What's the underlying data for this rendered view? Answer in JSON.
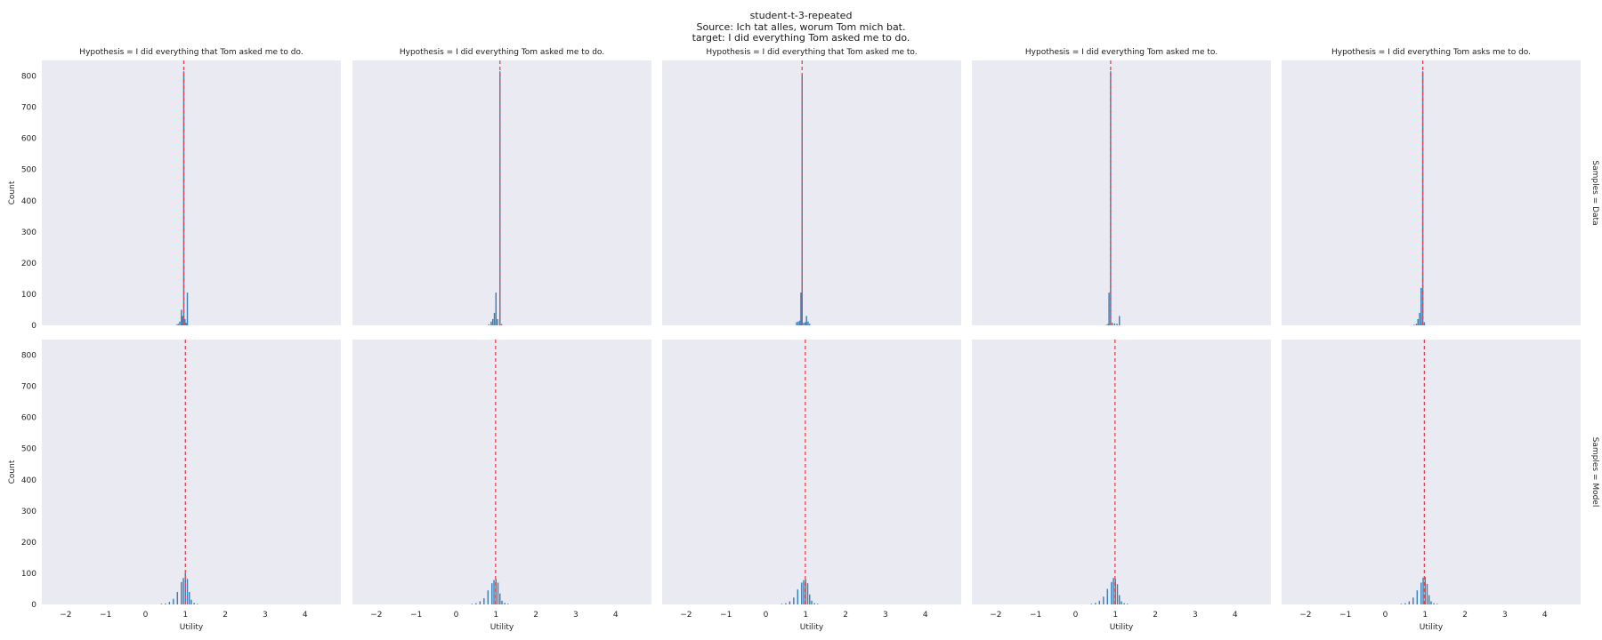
{
  "figure": {
    "title_lines": [
      "student-t-3-repeated",
      "Source: Ich tat alles, worum Tom mich bat.",
      "target: I did everything Tom asked me to do."
    ]
  },
  "colors": {
    "panel_bg": "#eaeaf2",
    "bar": "#3b7fb8",
    "reference_line": "#e8464f"
  },
  "chart_data": {
    "type": "histogram",
    "xlabel": "Utility",
    "ylabel": "Count",
    "xlim": [
      -2.6,
      4.9
    ],
    "ylim": [
      0,
      850
    ],
    "x_ticks": [
      -2,
      -1,
      0,
      1,
      2,
      3,
      4
    ],
    "x_tick_labels": [
      "−2",
      "−1",
      "0",
      "1",
      "2",
      "3",
      "4"
    ],
    "y_ticks": [
      0,
      100,
      200,
      300,
      400,
      500,
      600,
      700,
      800
    ],
    "y_tick_labels": [
      "0",
      "100",
      "200",
      "300",
      "400",
      "500",
      "600",
      "700",
      "800"
    ],
    "grid": false,
    "columns": [
      "Hypothesis = I did everything that Tom asked me to do.",
      "Hypothesis = I did everything Tom asked me to do.",
      "Hypothesis = I did everything that Tom asked me to.",
      "Hypothesis = I did everything Tom asked me to.",
      "Hypothesis = I did everything Tom asks me to do."
    ],
    "rows": [
      "Samples = Data",
      "Samples = Model"
    ],
    "reference_lines": [
      [
        0.96,
        1.1,
        0.91,
        0.88,
        0.94
      ],
      [
        1.0,
        0.99,
        0.99,
        0.99,
        0.98
      ]
    ],
    "panels": [
      [
        {
          "bins": [
            [
              0.78,
              2
            ],
            [
              0.82,
              5
            ],
            [
              0.86,
              12
            ],
            [
              0.9,
              50
            ],
            [
              0.93,
              30
            ],
            [
              0.96,
              815
            ],
            [
              0.99,
              20
            ],
            [
              1.02,
              8
            ],
            [
              1.05,
              105
            ]
          ]
        },
        {
          "bins": [
            [
              0.82,
              3
            ],
            [
              0.88,
              12
            ],
            [
              0.92,
              20
            ],
            [
              0.96,
              40
            ],
            [
              1.0,
              105
            ],
            [
              1.04,
              20
            ],
            [
              1.1,
              815
            ],
            [
              1.14,
              4
            ]
          ]
        },
        {
          "bins": [
            [
              0.77,
              10
            ],
            [
              0.81,
              12
            ],
            [
              0.85,
              15
            ],
            [
              0.88,
              105
            ],
            [
              0.91,
              805
            ],
            [
              0.95,
              8
            ],
            [
              0.99,
              10
            ],
            [
              1.02,
              30
            ],
            [
              1.06,
              12
            ],
            [
              1.1,
              5
            ]
          ]
        },
        {
          "bins": [
            [
              0.78,
              2
            ],
            [
              0.82,
              5
            ],
            [
              0.84,
              105
            ],
            [
              0.88,
              815
            ],
            [
              0.92,
              8
            ],
            [
              0.98,
              6
            ],
            [
              1.04,
              5
            ],
            [
              1.1,
              30
            ]
          ]
        },
        {
          "bins": [
            [
              0.72,
              2
            ],
            [
              0.78,
              5
            ],
            [
              0.82,
              20
            ],
            [
              0.86,
              40
            ],
            [
              0.9,
              120
            ],
            [
              0.94,
              815
            ],
            [
              0.98,
              10
            ]
          ]
        }
      ],
      [
        {
          "bins": [
            [
              0.4,
              2
            ],
            [
              0.5,
              3
            ],
            [
              0.6,
              8
            ],
            [
              0.7,
              18
            ],
            [
              0.8,
              40
            ],
            [
              0.9,
              72
            ],
            [
              0.95,
              85
            ],
            [
              1.0,
              100
            ],
            [
              1.05,
              82
            ],
            [
              1.1,
              40
            ],
            [
              1.15,
              15
            ],
            [
              1.22,
              5
            ],
            [
              1.3,
              2
            ]
          ]
        },
        {
          "bins": [
            [
              0.4,
              2
            ],
            [
              0.5,
              4
            ],
            [
              0.6,
              10
            ],
            [
              0.7,
              20
            ],
            [
              0.8,
              45
            ],
            [
              0.9,
              68
            ],
            [
              0.95,
              78
            ],
            [
              1.0,
              82
            ],
            [
              1.05,
              70
            ],
            [
              1.1,
              35
            ],
            [
              1.15,
              12
            ],
            [
              1.22,
              5
            ],
            [
              1.3,
              2
            ]
          ]
        },
        {
          "bins": [
            [
              0.4,
              2
            ],
            [
              0.5,
              4
            ],
            [
              0.6,
              10
            ],
            [
              0.7,
              22
            ],
            [
              0.8,
              48
            ],
            [
              0.9,
              70
            ],
            [
              0.95,
              78
            ],
            [
              1.0,
              80
            ],
            [
              1.05,
              68
            ],
            [
              1.1,
              32
            ],
            [
              1.15,
              12
            ],
            [
              1.22,
              4
            ],
            [
              1.3,
              2
            ]
          ]
        },
        {
          "bins": [
            [
              0.4,
              2
            ],
            [
              0.5,
              5
            ],
            [
              0.6,
              12
            ],
            [
              0.7,
              25
            ],
            [
              0.8,
              50
            ],
            [
              0.9,
              72
            ],
            [
              0.95,
              85
            ],
            [
              1.0,
              82
            ],
            [
              1.05,
              65
            ],
            [
              1.1,
              30
            ],
            [
              1.15,
              10
            ],
            [
              1.22,
              4
            ],
            [
              1.3,
              2
            ]
          ]
        },
        {
          "bins": [
            [
              0.4,
              2
            ],
            [
              0.5,
              4
            ],
            [
              0.6,
              10
            ],
            [
              0.7,
              22
            ],
            [
              0.8,
              45
            ],
            [
              0.9,
              70
            ],
            [
              0.95,
              86
            ],
            [
              1.0,
              88
            ],
            [
              1.05,
              66
            ],
            [
              1.1,
              30
            ],
            [
              1.15,
              10
            ],
            [
              1.22,
              4
            ],
            [
              1.3,
              2
            ]
          ]
        }
      ]
    ]
  }
}
